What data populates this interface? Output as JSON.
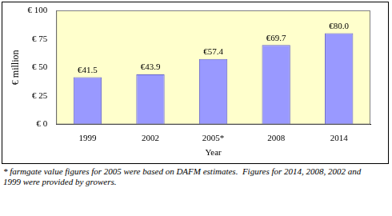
{
  "chart_data": {
    "type": "bar",
    "categories": [
      "1999",
      "2002",
      "2005*",
      "2008",
      "2014"
    ],
    "values": [
      41.5,
      43.9,
      57.4,
      69.7,
      80.0
    ],
    "value_labels": [
      "€41.5",
      "€43.9",
      "€57.4",
      "€69.7",
      "€80.0"
    ],
    "data_labels": true,
    "color": "#9999ff",
    "x_label": "Year",
    "y_label": "€ million",
    "ylim": [
      0,
      100
    ],
    "yticks": [
      {
        "value": 0,
        "label": "€ 0"
      },
      {
        "value": 25,
        "label": "€ 25"
      },
      {
        "value": 50,
        "label": "€ 50"
      },
      {
        "value": 75,
        "label": "€ 75"
      },
      {
        "value": 100,
        "label": "€ 100"
      }
    ],
    "grid": false,
    "annotations": [
      "* farmgate value figures for 2005 were based on DAFM estimates.  Figures for 2014, 2008, 2002 and",
      "1999 were provided by growers."
    ]
  }
}
